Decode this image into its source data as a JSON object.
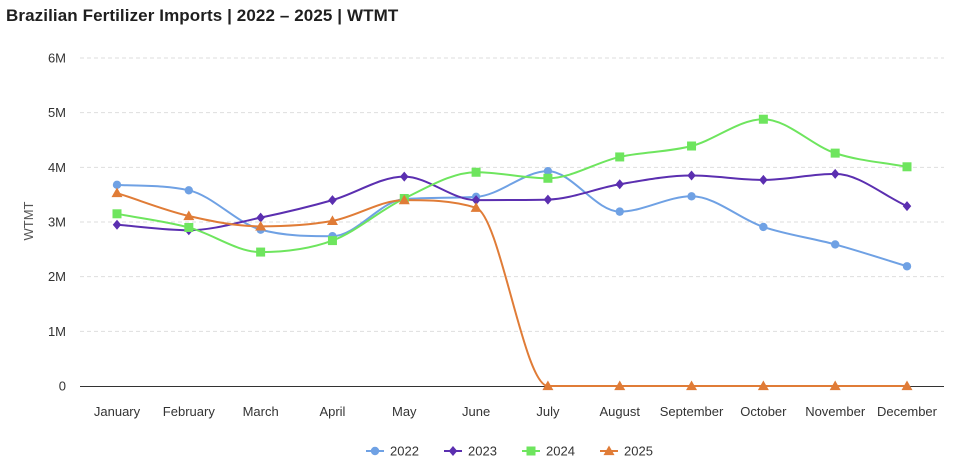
{
  "title": "Brazilian Fertilizer Imports | 2022 – 2025 | WTMT",
  "chart_data": {
    "type": "line",
    "title": "Brazilian Fertilizer Imports | 2022 – 2025 | WTMT",
    "xlabel": "",
    "ylabel": "WTMT",
    "ylim": [
      0,
      6000000
    ],
    "yticks": [
      0,
      1000000,
      2000000,
      3000000,
      4000000,
      5000000,
      6000000
    ],
    "ytick_labels": [
      "0",
      "1M",
      "2M",
      "3M",
      "4M",
      "5M",
      "6M"
    ],
    "grid": true,
    "legend_position": "bottom",
    "categories": [
      "January",
      "February",
      "March",
      "April",
      "May",
      "June",
      "July",
      "August",
      "September",
      "October",
      "November",
      "December"
    ],
    "series": [
      {
        "name": "2022",
        "color": "#6fa1e4",
        "marker": "circle",
        "values": [
          3680000,
          3580000,
          2860000,
          2740000,
          3420000,
          3460000,
          3930000,
          3190000,
          3470000,
          2910000,
          2590000,
          2190000
        ]
      },
      {
        "name": "2023",
        "color": "#5b2fb0",
        "marker": "diamond",
        "values": [
          2950000,
          2850000,
          3080000,
          3400000,
          3830000,
          3400000,
          3410000,
          3690000,
          3850000,
          3770000,
          3880000,
          3290000
        ]
      },
      {
        "name": "2024",
        "color": "#6ee55e",
        "marker": "square",
        "values": [
          3150000,
          2900000,
          2450000,
          2660000,
          3430000,
          3910000,
          3800000,
          4190000,
          4390000,
          4880000,
          4260000,
          4010000
        ]
      },
      {
        "name": "2025",
        "color": "#e07c37",
        "marker": "triangle",
        "values": [
          3530000,
          3110000,
          2920000,
          3020000,
          3400000,
          3260000,
          0,
          0,
          0,
          0,
          0,
          0
        ]
      }
    ]
  }
}
